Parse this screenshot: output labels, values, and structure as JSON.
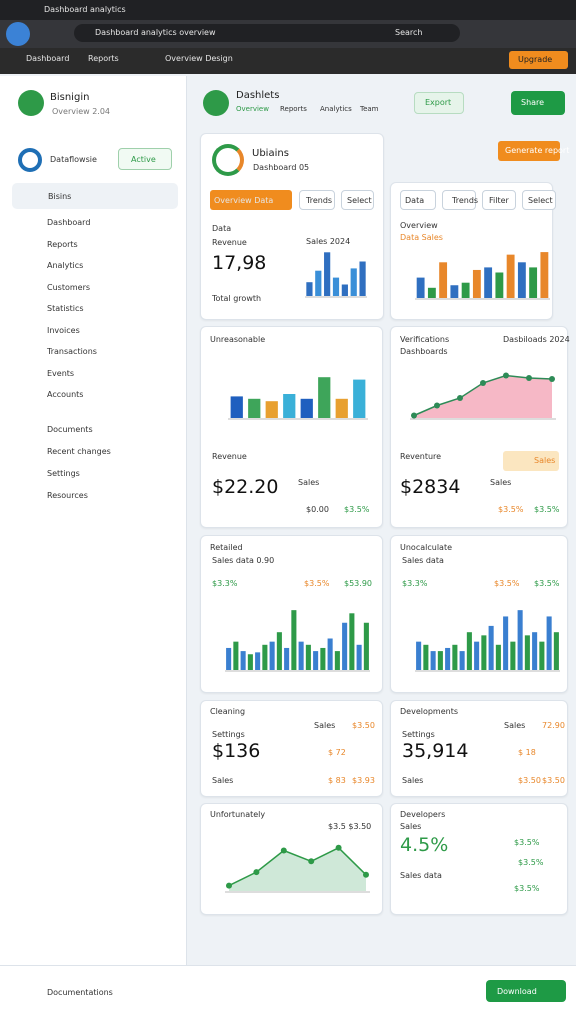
{
  "browser": {
    "tab": "Dashboard analytics",
    "url": "Dashboard analytics overview",
    "search": "Search",
    "bookmarks": [
      "Dashboard",
      "Reports",
      "Overview Design"
    ],
    "upgrade": "Upgrade"
  },
  "sidebar": {
    "brand": "Bisnigin",
    "brand_sub": "Overview 2.04",
    "user": "Dataflowsie",
    "user_button": "Active",
    "search": "Bisins",
    "nav": [
      "Dashboard",
      "Reports",
      "Analytics",
      "Customers",
      "Statistics",
      "Invoices",
      "Transactions",
      "Events",
      "Accounts"
    ],
    "nav2": [
      "Documents",
      "Recent changes",
      "Settings",
      "Resources"
    ],
    "footer": "Documentations"
  },
  "header": {
    "brand": "Dashlets",
    "tabs": [
      "Overview",
      "Reports",
      "Analytics",
      "Team"
    ],
    "export": "Export",
    "share": "Share",
    "download": "Download"
  },
  "cards": [
    {
      "title": "Ubiains",
      "subtitle": "Dashboard 05",
      "button": "Generate report",
      "tabs": [
        "Overview Data",
        "Trends",
        "Select"
      ],
      "label": "Data",
      "sublabel": "Revenue",
      "value": "17,98",
      "legend": "Total growth",
      "chart_label": "Sales 2024"
    },
    {
      "tabs": [
        "Data",
        "Trends",
        "Filter",
        "Select"
      ],
      "title": "Overview",
      "subtitle": "Data Sales"
    },
    {
      "title": "Unreasonable",
      "label": "Revenue",
      "value": "$22.20",
      "note": "Sales",
      "stat": "$0.00",
      "stat2": "$3.5%"
    },
    {
      "title": "Verifications",
      "subtitle": "Dashboards",
      "tag": "Dasbiloads 2024",
      "label": "Reventure",
      "badge": "Sales",
      "value": "$2834",
      "note": "Sales",
      "stat": "$3.5%",
      "stat2": "$3.5%"
    },
    {
      "title": "Retailed",
      "subtitle": "Sales data 0.90",
      "stats": [
        "$3.3%",
        "$3.5%",
        "$53.90"
      ]
    },
    {
      "title": "Unocalculate",
      "subtitle": "Sales data",
      "stats": [
        "$3.3%",
        "$3.5%",
        "$3.5%"
      ]
    },
    {
      "title": "Cleaning",
      "subtitle": "Settings",
      "value": "$136",
      "label": "Sales",
      "items": [
        "Sales",
        "$3.50",
        "$ 72",
        "$ 83",
        "$3.93"
      ]
    },
    {
      "title": "Developments",
      "subtitle": "Settings",
      "value": "35,914",
      "label": "Sales",
      "items": [
        "Sales",
        "72.90",
        "$ 18",
        "$3.50",
        "$3.50"
      ]
    },
    {
      "title": "Unfortunately",
      "annotation": "$3.5 $3.50"
    },
    {
      "title": "Developers",
      "label": "Sales",
      "value": "4.5%",
      "items": [
        "$3.5%",
        "$3.5%",
        "Sales data",
        "$3.5%"
      ]
    }
  ],
  "charts": [
    {
      "type": "bar",
      "ylim": [
        0,
        100
      ],
      "values": [
        30,
        55,
        95,
        40,
        25,
        60,
        75
      ],
      "colors": [
        "#2f6fc0",
        "#3a8fd8"
      ]
    },
    {
      "type": "bar",
      "ylim": [
        0,
        100
      ],
      "values": [
        40,
        20,
        70,
        25,
        30,
        55,
        60,
        50,
        85,
        70,
        60,
        90
      ],
      "colors": [
        "#2f6fc0",
        "#2e9a48",
        "#e8872a"
      ]
    },
    {
      "type": "bar",
      "ylim": [
        0,
        100
      ],
      "values": [
        45,
        40,
        35,
        50,
        40,
        85,
        40,
        80
      ],
      "colors": [
        "#1f5fbf",
        "#3ea55a",
        "#e8a030",
        "#3ab0d8"
      ]
    },
    {
      "type": "area",
      "ylim": [
        0,
        100
      ],
      "values": [
        5,
        25,
        40,
        70,
        85,
        80,
        78
      ],
      "color": "#2e8b57",
      "fill": "#f6b8c6"
    },
    {
      "type": "bar",
      "ylim": [
        0,
        100
      ],
      "values": [
        35,
        45,
        30,
        25,
        28,
        40,
        45,
        60,
        35,
        95,
        45,
        40,
        30,
        35,
        50,
        30,
        75,
        90,
        40,
        75
      ],
      "colors": [
        "#3a7fd0",
        "#2e9a48"
      ]
    },
    {
      "type": "bar",
      "ylim": [
        0,
        100
      ],
      "values": [
        45,
        40,
        30,
        30,
        35,
        40,
        30,
        60,
        45,
        55,
        70,
        40,
        85,
        45,
        95,
        55,
        60,
        45,
        85,
        60
      ],
      "colors": [
        "#3a7fd0",
        "#2e9a48"
      ]
    },
    {
      "type": "area",
      "ylim": [
        0,
        100
      ],
      "values": [
        10,
        35,
        75,
        55,
        80,
        30
      ],
      "color": "#2e9a48",
      "fill": "#cfe8d8"
    }
  ]
}
